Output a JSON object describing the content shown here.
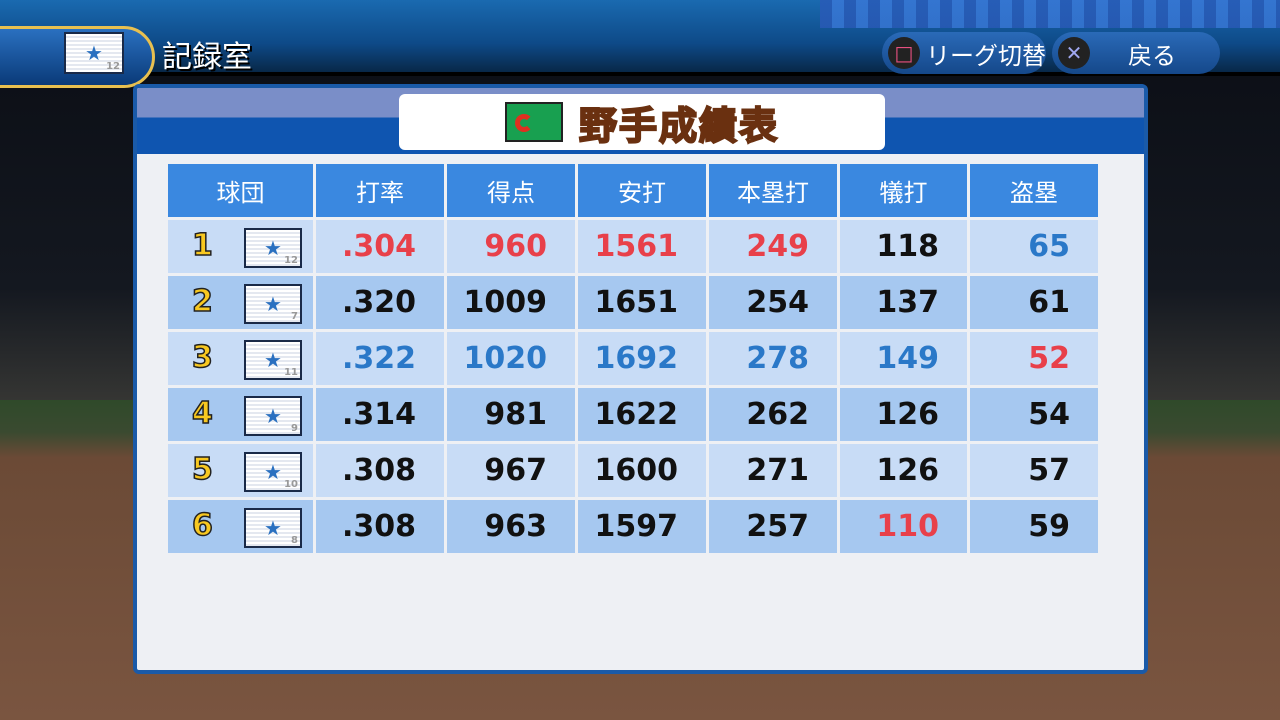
{
  "header": {
    "title": "記録室",
    "team_number": "12",
    "buttons": [
      {
        "icon": "square-button-icon",
        "label": "リーグ切替"
      },
      {
        "icon": "cross-button-icon",
        "label": "戻る"
      }
    ]
  },
  "panel": {
    "title": "野手成績表"
  },
  "colors": {
    "red": "#e8404a",
    "blue": "#2a78c8",
    "black": "#111111",
    "header": "#3a88e0"
  },
  "table": {
    "columns": [
      "球団",
      "打率",
      "得点",
      "安打",
      "本塁打",
      "犠打",
      "盗塁"
    ],
    "rows": [
      {
        "rank": "1",
        "team_number": "12",
        "values": [
          ".304",
          "960",
          "1561",
          "249",
          "118",
          "65"
        ],
        "colors": [
          "r",
          "r",
          "r",
          "r",
          "k",
          "b"
        ]
      },
      {
        "rank": "2",
        "team_number": "7",
        "values": [
          ".320",
          "1009",
          "1651",
          "254",
          "137",
          "61"
        ],
        "colors": [
          "k",
          "k",
          "k",
          "k",
          "k",
          "k"
        ]
      },
      {
        "rank": "3",
        "team_number": "11",
        "values": [
          ".322",
          "1020",
          "1692",
          "278",
          "149",
          "52"
        ],
        "colors": [
          "b",
          "b",
          "b",
          "b",
          "b",
          "r"
        ]
      },
      {
        "rank": "4",
        "team_number": "9",
        "values": [
          ".314",
          "981",
          "1622",
          "262",
          "126",
          "54"
        ],
        "colors": [
          "k",
          "k",
          "k",
          "k",
          "k",
          "k"
        ]
      },
      {
        "rank": "5",
        "team_number": "10",
        "values": [
          ".308",
          "967",
          "1600",
          "271",
          "126",
          "57"
        ],
        "colors": [
          "k",
          "k",
          "k",
          "k",
          "k",
          "k"
        ]
      },
      {
        "rank": "6",
        "team_number": "8",
        "values": [
          ".308",
          "963",
          "1597",
          "257",
          "110",
          "59"
        ],
        "colors": [
          "k",
          "k",
          "k",
          "k",
          "r",
          "k"
        ]
      }
    ]
  }
}
